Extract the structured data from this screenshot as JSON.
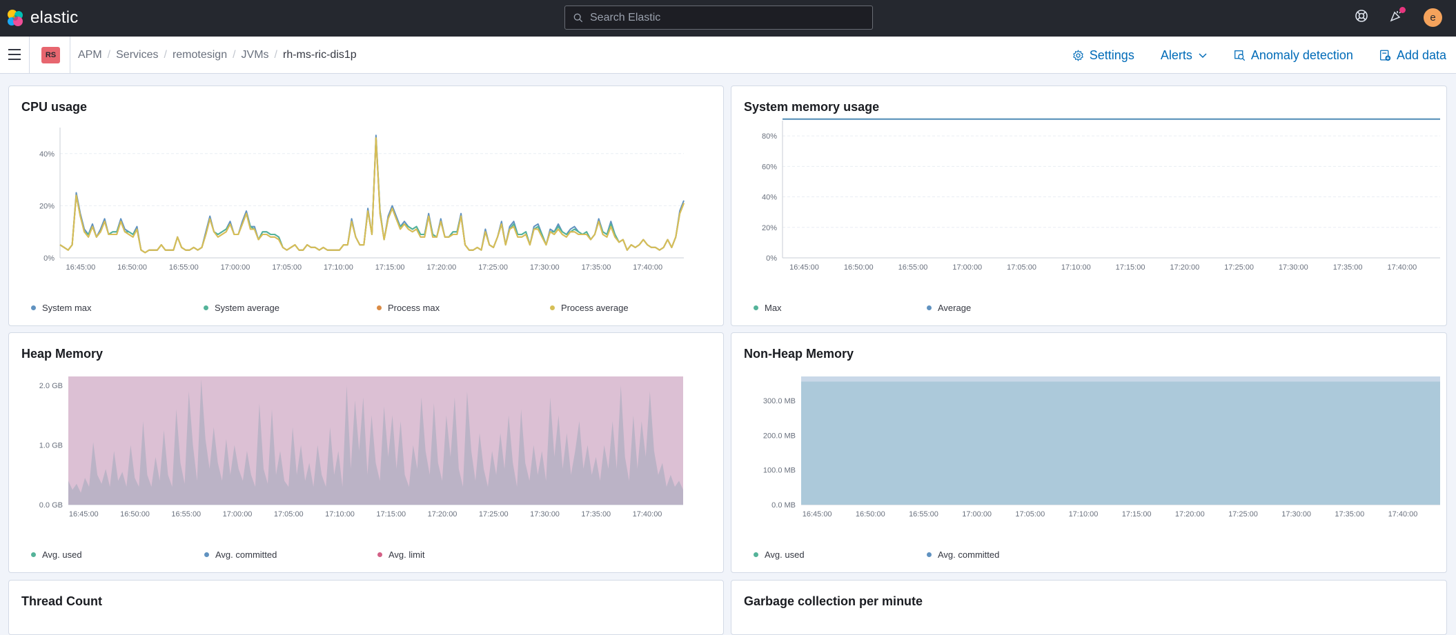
{
  "topbar": {
    "logo_text": "elastic",
    "search_placeholder": "Search Elastic",
    "avatar_initial": "e"
  },
  "subbar": {
    "space_initials": "RS",
    "breadcrumbs": [
      "APM",
      "Services",
      "remotesign",
      "JVMs",
      "rh-ms-ric-dis1p"
    ],
    "settings_label": "Settings",
    "alerts_label": "Alerts",
    "anomaly_label": "Anomaly detection",
    "add_data_label": "Add data"
  },
  "colors": {
    "blue": "#6092c0",
    "green": "#54b399",
    "orange": "#da8b45",
    "yellow": "#d6bf57",
    "pink": "#d36086",
    "heap_limit_fill": "#dcc0d4",
    "heap_used_fill": "#bbb3c6",
    "nonheap_committed_fill": "#c9d8e8",
    "nonheap_used_fill": "#acc9da"
  },
  "time_ticks": [
    "16:45:00",
    "16:50:00",
    "16:55:00",
    "17:00:00",
    "17:05:00",
    "17:10:00",
    "17:15:00",
    "17:20:00",
    "17:25:00",
    "17:30:00",
    "17:35:00",
    "17:40:00"
  ],
  "panels": {
    "cpu": {
      "title": "CPU usage",
      "legend": [
        "System max",
        "System average",
        "Process max",
        "Process average"
      ]
    },
    "sysmem": {
      "title": "System memory usage",
      "legend": [
        "Max",
        "Average"
      ]
    },
    "heap": {
      "title": "Heap Memory",
      "legend": [
        "Avg. used",
        "Avg. committed",
        "Avg. limit"
      ]
    },
    "nonheap": {
      "title": "Non-Heap Memory",
      "legend": [
        "Avg. used",
        "Avg. committed"
      ]
    },
    "threads": {
      "title": "Thread Count"
    },
    "gc": {
      "title": "Garbage collection per minute"
    }
  },
  "chart_data": [
    {
      "type": "line",
      "title": "CPU usage",
      "y_ticks": [
        "0%",
        "20%",
        "40%"
      ],
      "ylim": [
        0,
        50
      ],
      "x_start": "16:43:00",
      "x_end": "17:43:30",
      "series": [
        {
          "name": "System max",
          "color": "#6092c0",
          "values": [
            5,
            4,
            3,
            5,
            25,
            17,
            11,
            9,
            13,
            8,
            11,
            15,
            9,
            10,
            10,
            15,
            11,
            10,
            9,
            12,
            3,
            2,
            3,
            3,
            3,
            5,
            3,
            3,
            3,
            8,
            4,
            3,
            3,
            4,
            3,
            4,
            10,
            16,
            10,
            9,
            10,
            11,
            14,
            9,
            9,
            14,
            18,
            12,
            12,
            7,
            10,
            10,
            9,
            9,
            8,
            4,
            3,
            4,
            5,
            3,
            3,
            5,
            4,
            4,
            3,
            4,
            3,
            3,
            3,
            3,
            5,
            5,
            15,
            8,
            5,
            5,
            19,
            9,
            47,
            18,
            7,
            16,
            20,
            16,
            12,
            14,
            12,
            11,
            12,
            9,
            9,
            17,
            9,
            8,
            15,
            8,
            8,
            10,
            10,
            17,
            5,
            3,
            3,
            4,
            3,
            11,
            5,
            4,
            8,
            14,
            5,
            12,
            14,
            9,
            9,
            10,
            5,
            12,
            13,
            9,
            5,
            11,
            10,
            13,
            10,
            9,
            11,
            12,
            10,
            9,
            10,
            7,
            9,
            15,
            10,
            9,
            14,
            9,
            6,
            7,
            3,
            5,
            4,
            5,
            7,
            5,
            4,
            4,
            3,
            4,
            7,
            4,
            8,
            18,
            22
          ]
        },
        {
          "name": "System average",
          "color": "#54b399",
          "values": [
            5,
            4,
            3,
            5,
            24,
            16,
            10,
            9,
            12,
            8,
            10,
            14,
            9,
            10,
            10,
            14,
            10,
            10,
            9,
            11,
            3,
            2,
            3,
            3,
            3,
            5,
            3,
            3,
            3,
            8,
            4,
            3,
            3,
            4,
            3,
            4,
            9,
            15,
            10,
            9,
            10,
            11,
            13,
            9,
            9,
            13,
            17,
            12,
            11,
            7,
            10,
            10,
            9,
            9,
            8,
            4,
            3,
            4,
            5,
            3,
            3,
            5,
            4,
            4,
            3,
            4,
            3,
            3,
            3,
            3,
            5,
            5,
            14,
            8,
            5,
            5,
            18,
            9,
            46,
            18,
            7,
            15,
            19,
            15,
            12,
            13,
            12,
            11,
            12,
            9,
            9,
            16,
            9,
            8,
            14,
            8,
            8,
            10,
            10,
            16,
            5,
            3,
            3,
            4,
            3,
            10,
            5,
            4,
            8,
            13,
            5,
            11,
            13,
            9,
            9,
            10,
            5,
            11,
            12,
            9,
            5,
            10,
            10,
            12,
            10,
            9,
            10,
            11,
            10,
            9,
            10,
            7,
            9,
            14,
            10,
            9,
            13,
            9,
            6,
            7,
            3,
            5,
            4,
            5,
            7,
            5,
            4,
            4,
            3,
            4,
            7,
            4,
            8,
            17,
            21
          ]
        },
        {
          "name": "Process max",
          "color": "#da8b45",
          "values": [
            5,
            4,
            3,
            5,
            24,
            16,
            10,
            8,
            12,
            8,
            10,
            14,
            9,
            9,
            9,
            14,
            10,
            9,
            8,
            11,
            3,
            2,
            3,
            3,
            3,
            5,
            3,
            3,
            3,
            8,
            4,
            3,
            3,
            4,
            3,
            4,
            9,
            15,
            10,
            8,
            9,
            10,
            13,
            9,
            9,
            13,
            17,
            11,
            11,
            7,
            9,
            9,
            8,
            8,
            7,
            4,
            3,
            4,
            5,
            3,
            3,
            5,
            4,
            4,
            3,
            4,
            3,
            3,
            3,
            3,
            5,
            5,
            14,
            8,
            5,
            5,
            18,
            9,
            46,
            17,
            7,
            15,
            19,
            15,
            11,
            13,
            11,
            10,
            11,
            8,
            8,
            16,
            8,
            8,
            14,
            8,
            8,
            9,
            9,
            16,
            5,
            3,
            3,
            4,
            3,
            10,
            5,
            4,
            8,
            13,
            5,
            11,
            12,
            8,
            8,
            9,
            5,
            11,
            11,
            8,
            5,
            10,
            9,
            11,
            9,
            8,
            10,
            10,
            9,
            9,
            9,
            7,
            9,
            14,
            9,
            8,
            12,
            8,
            6,
            7,
            3,
            5,
            4,
            5,
            7,
            5,
            4,
            4,
            3,
            4,
            7,
            4,
            8,
            17,
            21
          ]
        },
        {
          "name": "Process average",
          "color": "#d6bf57",
          "values": [
            5,
            4,
            3,
            5,
            24,
            16,
            10,
            8,
            12,
            8,
            10,
            14,
            9,
            9,
            9,
            14,
            10,
            9,
            8,
            11,
            3,
            2,
            3,
            3,
            3,
            5,
            3,
            3,
            3,
            8,
            4,
            3,
            3,
            4,
            3,
            4,
            9,
            15,
            10,
            8,
            9,
            10,
            13,
            9,
            9,
            13,
            17,
            11,
            11,
            7,
            9,
            9,
            8,
            8,
            7,
            4,
            3,
            4,
            5,
            3,
            3,
            5,
            4,
            4,
            3,
            4,
            3,
            3,
            3,
            3,
            5,
            5,
            14,
            8,
            5,
            5,
            18,
            9,
            46,
            17,
            7,
            15,
            19,
            15,
            11,
            13,
            11,
            10,
            11,
            8,
            8,
            16,
            8,
            8,
            14,
            8,
            8,
            9,
            9,
            16,
            5,
            3,
            3,
            4,
            3,
            10,
            5,
            4,
            8,
            13,
            5,
            11,
            12,
            8,
            8,
            9,
            5,
            11,
            11,
            8,
            5,
            10,
            9,
            11,
            9,
            8,
            10,
            10,
            9,
            9,
            9,
            7,
            9,
            14,
            9,
            8,
            12,
            8,
            6,
            7,
            3,
            5,
            4,
            5,
            7,
            5,
            4,
            4,
            3,
            4,
            7,
            4,
            8,
            17,
            21
          ]
        }
      ]
    },
    {
      "type": "line",
      "title": "System memory usage",
      "y_ticks": [
        "0%",
        "20%",
        "40%",
        "60%",
        "80%"
      ],
      "ylim": [
        0,
        90
      ],
      "x_start": "16:43:00",
      "x_end": "17:43:30",
      "series": [
        {
          "name": "Max",
          "color": "#54b399",
          "values": [
            91,
            91,
            91,
            91,
            91,
            91,
            91,
            91,
            91,
            91,
            91,
            91,
            91,
            91,
            91,
            91,
            91,
            91,
            91,
            91,
            91,
            91,
            91
          ]
        },
        {
          "name": "Average",
          "color": "#6092c0",
          "values": [
            91,
            91,
            91,
            91,
            91,
            91,
            91,
            91,
            91,
            91,
            91,
            91,
            91,
            91,
            91,
            91,
            91,
            91,
            91,
            91,
            91,
            91,
            91
          ]
        }
      ]
    },
    {
      "type": "area",
      "title": "Heap Memory",
      "y_ticks": [
        "0.0 GB",
        "1.0 GB",
        "2.0 GB"
      ],
      "ylim": [
        0,
        2.15
      ],
      "x_start": "16:43:30",
      "x_end": "17:43:30",
      "series": [
        {
          "name": "Avg. limit",
          "color": "#d36086",
          "values": [
            2.15,
            2.15
          ]
        },
        {
          "name": "Avg. committed",
          "color": "#6092c0",
          "values": [
            2.15,
            2.15
          ]
        },
        {
          "name": "Avg. used",
          "color": "#54b399",
          "values": [
            0.4,
            0.25,
            0.35,
            0.2,
            0.45,
            0.3,
            1.05,
            0.5,
            0.35,
            0.6,
            0.3,
            0.9,
            0.4,
            0.55,
            0.3,
            1.0,
            0.45,
            0.3,
            1.4,
            0.5,
            0.3,
            0.8,
            0.4,
            1.25,
            0.5,
            0.3,
            1.6,
            0.7,
            0.35,
            1.9,
            1.0,
            0.4,
            2.1,
            1.1,
            0.6,
            1.3,
            0.7,
            0.4,
            1.1,
            0.5,
            1.0,
            0.6,
            0.4,
            0.9,
            0.5,
            0.3,
            1.7,
            0.6,
            0.35,
            1.6,
            0.5,
            0.9,
            0.4,
            0.3,
            1.3,
            0.5,
            1.0,
            0.4,
            0.7,
            0.3,
            1.0,
            0.5,
            0.3,
            1.3,
            0.5,
            0.9,
            0.3,
            2.0,
            0.6,
            1.75,
            0.9,
            1.8,
            0.5,
            1.5,
            0.7,
            0.4,
            1.65,
            0.8,
            1.5,
            0.6,
            1.4,
            0.5,
            0.3,
            1.0,
            0.6,
            1.8,
            0.9,
            0.5,
            1.7,
            0.7,
            0.4,
            1.5,
            0.8,
            1.8,
            0.6,
            0.3,
            1.9,
            0.9,
            0.4,
            1.2,
            0.6,
            0.3,
            0.9,
            0.5,
            1.2,
            0.6,
            1.5,
            0.7,
            0.3,
            1.6,
            0.7,
            0.4,
            1.0,
            0.5,
            0.9,
            0.4,
            1.8,
            0.8,
            1.5,
            0.6,
            1.2,
            0.5,
            0.9,
            1.4,
            0.6,
            1.0,
            0.5,
            0.8,
            0.4,
            1.0,
            0.6,
            1.4,
            0.6,
            2.0,
            0.8,
            0.4,
            1.5,
            0.6,
            1.4,
            0.8,
            1.9,
            0.9,
            0.5,
            0.7,
            0.3,
            0.5,
            0.3,
            0.4,
            0.25
          ]
        }
      ]
    },
    {
      "type": "area",
      "title": "Non-Heap Memory",
      "y_ticks": [
        "0.0 MB",
        "100.0 MB",
        "200.0 MB",
        "300.0 MB"
      ],
      "ylim": [
        0,
        370
      ],
      "x_start": "16:43:30",
      "x_end": "17:43:30",
      "series": [
        {
          "name": "Avg. committed",
          "color": "#6092c0",
          "values": [
            370,
            370
          ]
        },
        {
          "name": "Avg. used",
          "color": "#54b399",
          "values": [
            355,
            355
          ]
        }
      ]
    }
  ]
}
